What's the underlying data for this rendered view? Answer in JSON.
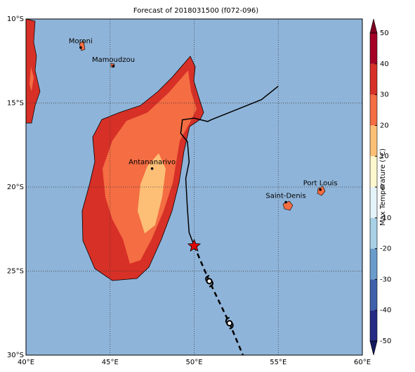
{
  "title": "Forecast of 2018031500 (f072-096)",
  "map": {
    "xlim": [
      40,
      60
    ],
    "ylim": [
      -30,
      -10
    ],
    "xticks": [
      {
        "value": 40,
        "label": "40°E"
      },
      {
        "value": 45,
        "label": "45°E"
      },
      {
        "value": 50,
        "label": "50°E"
      },
      {
        "value": 55,
        "label": "55°E"
      },
      {
        "value": 60,
        "label": "60°E"
      }
    ],
    "yticks": [
      {
        "value": -10,
        "label": "10°S"
      },
      {
        "value": -15,
        "label": "15°S"
      },
      {
        "value": -20,
        "label": "20°S"
      },
      {
        "value": -25,
        "label": "25°S"
      },
      {
        "value": -30,
        "label": "30°S"
      }
    ],
    "grid": true,
    "ocean_color": "#8fb4d9"
  },
  "cities": [
    {
      "name": "Moroni",
      "lon": 43.25,
      "lat": -11.7
    },
    {
      "name": "Mamoudzou",
      "lon": 45.2,
      "lat": -12.8
    },
    {
      "name": "Antananarivo",
      "lon": 47.5,
      "lat": -18.9
    },
    {
      "name": "Saint-Denis",
      "lon": 55.45,
      "lat": -20.9
    },
    {
      "name": "Port Louis",
      "lon": 57.5,
      "lat": -20.15
    }
  ],
  "track": {
    "observed": {
      "lon": [
        55,
        54,
        53,
        51,
        50.8,
        50,
        49.3,
        49.2,
        49.6,
        49.7,
        49.5,
        49.6,
        49.7,
        50
      ],
      "lat": [
        -14,
        -14.8,
        -15.2,
        -16,
        -16.1,
        -15.9,
        -16,
        -16.8,
        -17.3,
        -18.5,
        -19.5,
        -21.3,
        -22.7,
        -23.5
      ],
      "color": "#000000"
    },
    "forecast": {
      "lon": [
        50,
        50.9,
        52.1,
        52.9
      ],
      "lat": [
        -23.5,
        -25.6,
        -28.1,
        -30
      ],
      "color": "#000000"
    },
    "storm_positions": {
      "lon": [
        50.9,
        52.1
      ],
      "lat": [
        -25.6,
        -28.1
      ]
    },
    "current": {
      "lon": 50,
      "lat": -23.5,
      "color": "#e00000"
    }
  },
  "colorbar": {
    "label": "Max Temperature (°C)",
    "levels": [
      -50,
      -40,
      -30,
      -20,
      -10,
      0,
      10,
      20,
      30,
      40,
      50
    ],
    "colors": [
      "#252b85",
      "#3f60aa",
      "#6a9ccb",
      "#a8d1e6",
      "#e5f4f9",
      "#fef7cd",
      "#fdbf76",
      "#f46d43",
      "#d73027",
      "#a50026"
    ],
    "extend_colors": [
      "#141a5e",
      "#7f0020"
    ]
  }
}
